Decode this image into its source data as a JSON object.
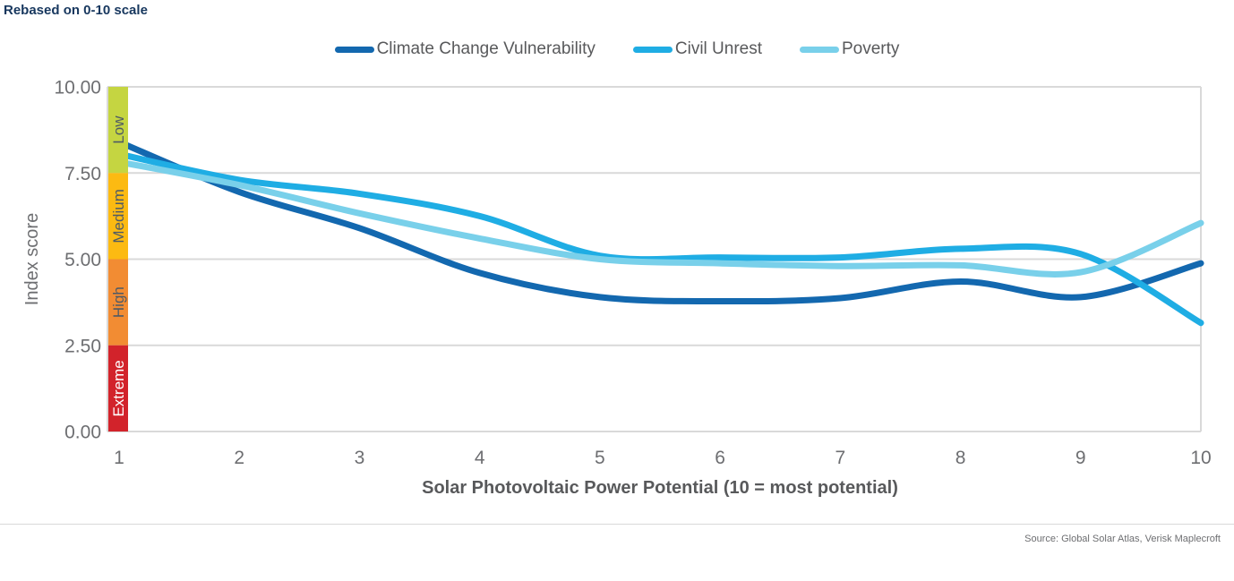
{
  "header": {
    "note": "Rebased on 0-10 scale"
  },
  "legend": [
    {
      "label": "Climate Change Vulnerability",
      "color": "#1368af"
    },
    {
      "label": "Civil Unrest",
      "color": "#1fade4"
    },
    {
      "label": "Poverty",
      "color": "#79d0ea"
    }
  ],
  "risk_bands": [
    {
      "label": "Low",
      "color": "#c5d541",
      "from": 7.5,
      "to": 10.0,
      "text_color": "#4e5a66"
    },
    {
      "label": "Medium",
      "color": "#fcba12",
      "from": 5.0,
      "to": 7.5,
      "text_color": "#4e5a66"
    },
    {
      "label": "High",
      "color": "#f28c33",
      "from": 2.5,
      "to": 5.0,
      "text_color": "#4e5a66"
    },
    {
      "label": "Extreme",
      "color": "#d2232b",
      "from": 0.0,
      "to": 2.5,
      "text_color": "#ffffff"
    }
  ],
  "chart_data": {
    "type": "line",
    "x": [
      1,
      2,
      3,
      4,
      5,
      6,
      7,
      8,
      9,
      10
    ],
    "series": [
      {
        "name": "Climate Change Vulnerability",
        "color": "#1368af",
        "values": [
          8.4,
          6.95,
          5.9,
          4.6,
          3.9,
          3.78,
          3.87,
          4.35,
          3.9,
          4.88
        ]
      },
      {
        "name": "Civil Unrest",
        "color": "#1fade4",
        "values": [
          8.05,
          7.3,
          6.9,
          6.25,
          5.1,
          5.05,
          5.05,
          5.3,
          5.15,
          3.15
        ]
      },
      {
        "name": "Poverty",
        "color": "#79d0ea",
        "values": [
          7.82,
          7.15,
          6.33,
          5.6,
          5.0,
          4.88,
          4.8,
          4.82,
          4.62,
          6.05
        ]
      }
    ],
    "title": "Rebased on 0-10 scale",
    "xlabel": "Solar Photovoltaic Power Potential (10 = most potential)",
    "ylabel": "Index score",
    "ylim": [
      0,
      10
    ],
    "ytick_values": [
      10,
      7.5,
      5,
      2.5,
      0
    ],
    "ytick_labels": [
      "10.00",
      "7.50",
      "5.00",
      "2.50",
      "0.00"
    ],
    "xtick_labels": [
      "1",
      "2",
      "3",
      "4",
      "5",
      "6",
      "7",
      "8",
      "9",
      "10"
    ],
    "grid": true,
    "legend_position": "top"
  },
  "footer": {
    "source": "Source: Global Solar Atlas, Verisk Maplecroft"
  }
}
